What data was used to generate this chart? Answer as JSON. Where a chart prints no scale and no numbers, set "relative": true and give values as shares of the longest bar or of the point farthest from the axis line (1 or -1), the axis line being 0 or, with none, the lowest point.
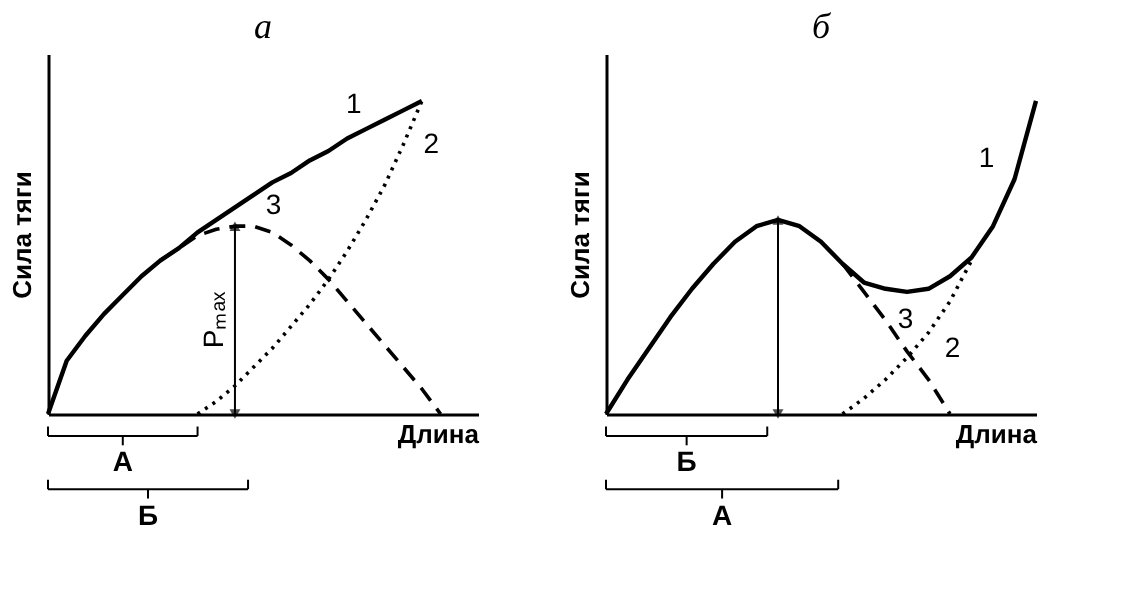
{
  "chart_data": [
    {
      "type": "line",
      "title": "а",
      "xlabel": "Длина",
      "ylabel": "Сила тяги",
      "relative": true,
      "legend": false,
      "marker": "none",
      "categories": [
        null,
        null,
        null,
        null,
        null,
        null,
        null,
        null,
        null,
        null,
        null,
        null,
        null,
        null,
        null,
        null,
        null,
        null,
        null,
        null,
        null,
        null,
        null,
        null
      ],
      "series": [
        {
          "name": "1",
          "color": "#000000",
          "line_style": "solid",
          "values": [
            0,
            0.17,
            0.25,
            0.32,
            0.38,
            0.44,
            0.49,
            0.53,
            0.58,
            0.62,
            0.66,
            0.7,
            0.74,
            0.77,
            0.81,
            0.84,
            0.88,
            0.91,
            0.94,
            0.97,
            1,
            null,
            null,
            null
          ]
        },
        {
          "name": "2",
          "color": "#000000",
          "line_style": "dotted",
          "values": [
            null,
            null,
            null,
            null,
            null,
            null,
            null,
            null,
            0,
            0.04,
            0.09,
            0.15,
            0.21,
            0.28,
            0.35,
            0.43,
            0.52,
            0.62,
            0.73,
            0.86,
            1,
            null,
            null,
            null
          ]
        },
        {
          "name": "3",
          "color": "#000000",
          "line_style": "dashed",
          "values": [
            null,
            null,
            null,
            null,
            null,
            null,
            0.49,
            0.53,
            0.57,
            0.59,
            0.6,
            0.6,
            0.58,
            0.54,
            0.49,
            0.43,
            0.36,
            0.29,
            0.22,
            0.15,
            0.08,
            0,
            null,
            null
          ]
        }
      ],
      "annotations": [
        "Pₘₐₓ",
        "А",
        "Б"
      ]
    },
    {
      "type": "line",
      "title": "б",
      "xlabel": "Длина",
      "ylabel": "Сила тяги",
      "relative": true,
      "legend": false,
      "marker": "none",
      "categories": [
        null,
        null,
        null,
        null,
        null,
        null,
        null,
        null,
        null,
        null,
        null,
        null,
        null,
        null,
        null,
        null,
        null,
        null,
        null,
        null,
        null
      ],
      "series": [
        {
          "name": "1",
          "color": "#000000",
          "line_style": "solid",
          "values": [
            0,
            0.11,
            0.21,
            0.31,
            0.4,
            0.48,
            0.55,
            0.6,
            0.62,
            0.6,
            0.55,
            0.48,
            0.42,
            0.4,
            0.39,
            0.4,
            0.44,
            0.5,
            0.6,
            0.75,
            1
          ]
        },
        {
          "name": "2",
          "color": "#000000",
          "line_style": "dotted",
          "values": [
            null,
            null,
            null,
            null,
            null,
            null,
            null,
            null,
            null,
            null,
            null,
            0,
            0.05,
            0.11,
            0.18,
            0.26,
            0.36,
            0.49,
            null,
            null,
            null
          ]
        },
        {
          "name": "3",
          "color": "#000000",
          "line_style": "dashed",
          "values": [
            null,
            null,
            null,
            null,
            null,
            null,
            null,
            null,
            null,
            null,
            null,
            0.48,
            0.39,
            0.3,
            0.2,
            0.11,
            0,
            null,
            null,
            null,
            null
          ]
        }
      ],
      "annotations": [
        "Б",
        "А"
      ]
    }
  ]
}
